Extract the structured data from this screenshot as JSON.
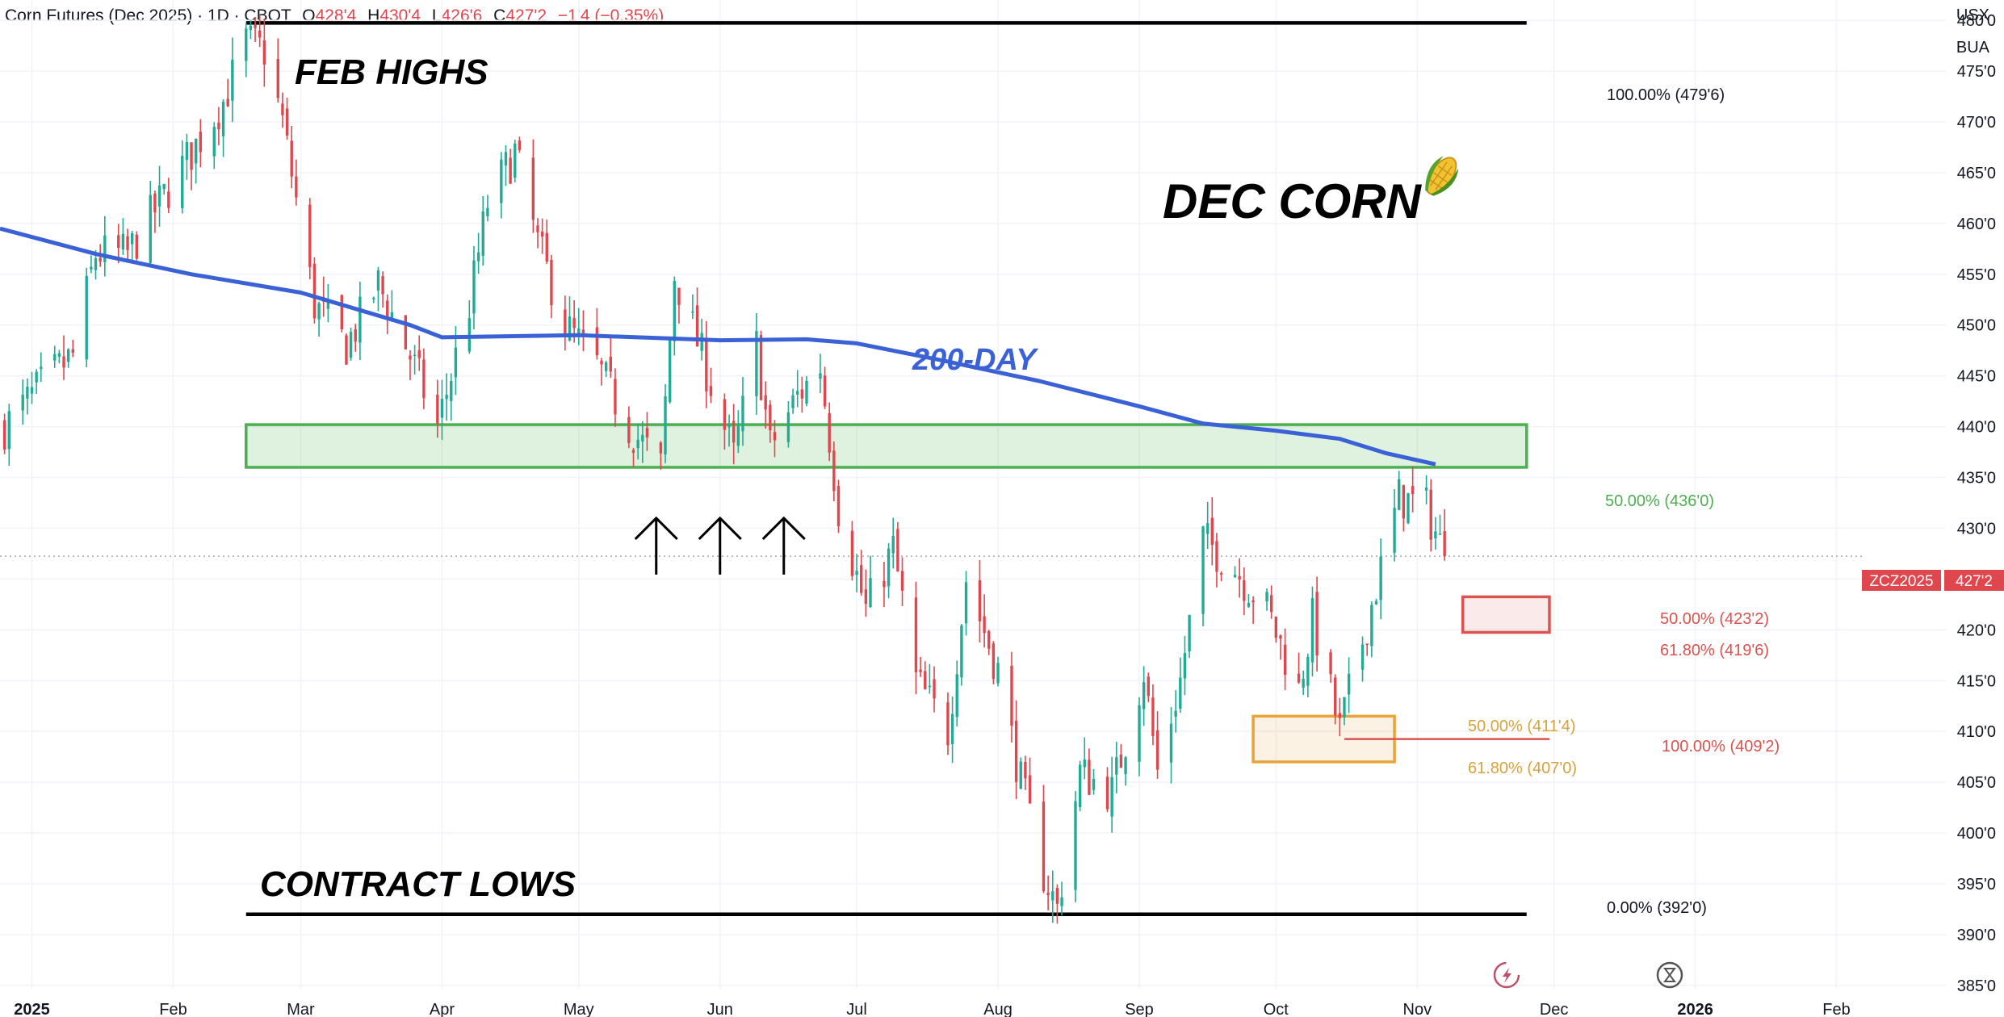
{
  "header": {
    "symbol": "Corn Futures (Dec 2025) · 1D · CBOT",
    "open_label": "O",
    "open": "428'4",
    "high_label": "H",
    "high": "430'4",
    "low_label": "L",
    "low": "426'6",
    "close_label": "C",
    "close": "427'2",
    "change": "−1'4 (−0.35%)"
  },
  "units": {
    "currency": "USX",
    "unit": "BUA"
  },
  "ticker_badge": {
    "symbol": "ZCZ2025",
    "price": "427'2"
  },
  "colors": {
    "up": "#22ab94",
    "down": "#e0464d",
    "ma": "#3a62d6",
    "zone_green": "#4caf50",
    "zone_red": "#d9534f",
    "zone_orange": "#e8a33a"
  },
  "icons": [
    "lightning-icon",
    "hourglass-icon"
  ],
  "chart_data": {
    "type": "candlestick",
    "x_axis": {
      "tick_labels": [
        "2025",
        "Feb",
        "Mar",
        "Apr",
        "May",
        "Jun",
        "Jul",
        "Aug",
        "Sep",
        "Oct",
        "Nov",
        "Dec",
        "2026",
        "Feb"
      ],
      "tick_dates": [
        "2025-01-01",
        "2025-02-01",
        "2025-03-01",
        "2025-04-01",
        "2025-05-01",
        "2025-06-01",
        "2025-07-01",
        "2025-08-01",
        "2025-09-01",
        "2025-10-01",
        "2025-11-01",
        "2025-12-01",
        "2026-01-01",
        "2026-02-01"
      ],
      "range": [
        "2024-12-25",
        "2026-02-25"
      ]
    },
    "y_axis": {
      "range": [
        383,
        482
      ],
      "tick_values": [
        385,
        390,
        395,
        400,
        405,
        410,
        415,
        420,
        425,
        430,
        435,
        440,
        445,
        450,
        455,
        460,
        465,
        470,
        475,
        480
      ],
      "tick_labels": [
        "385'0",
        "390'0",
        "395'0",
        "400'0",
        "405'0",
        "410'0",
        "415'0",
        "420'0",
        "425'0",
        "430'0",
        "435'0",
        "440'0",
        "445'0",
        "450'0",
        "455'0",
        "460'0",
        "465'0",
        "470'0",
        "475'0",
        "480'0"
      ]
    },
    "last_price": 427.25,
    "close_path": [
      [
        "2024-12-26",
        440
      ],
      [
        "2025-01-03",
        444
      ],
      [
        "2025-01-10",
        447
      ],
      [
        "2025-01-15",
        457
      ],
      [
        "2025-01-22",
        457
      ],
      [
        "2025-01-29",
        462
      ],
      [
        "2025-02-05",
        467
      ],
      [
        "2025-02-12",
        472
      ],
      [
        "2025-02-17",
        478
      ],
      [
        "2025-02-21",
        477
      ],
      [
        "2025-02-25",
        470
      ],
      [
        "2025-03-04",
        452
      ],
      [
        "2025-03-11",
        448
      ],
      [
        "2025-03-18",
        454
      ],
      [
        "2025-03-25",
        447
      ],
      [
        "2025-03-31",
        440
      ],
      [
        "2025-04-07",
        452
      ],
      [
        "2025-04-11",
        462
      ],
      [
        "2025-04-17",
        467
      ],
      [
        "2025-04-22",
        458
      ],
      [
        "2025-04-28",
        450
      ],
      [
        "2025-05-05",
        446
      ],
      [
        "2025-05-12",
        440
      ],
      [
        "2025-05-19",
        436
      ],
      [
        "2025-05-22",
        455
      ],
      [
        "2025-05-28",
        447
      ],
      [
        "2025-06-04",
        437
      ],
      [
        "2025-06-09",
        448
      ],
      [
        "2025-06-12",
        438
      ],
      [
        "2025-06-18",
        443
      ],
      [
        "2025-06-23",
        446
      ],
      [
        "2025-06-27",
        432
      ],
      [
        "2025-07-03",
        422
      ],
      [
        "2025-07-09",
        428
      ],
      [
        "2025-07-14",
        415
      ],
      [
        "2025-07-21",
        410
      ],
      [
        "2025-07-25",
        425
      ],
      [
        "2025-08-01",
        416
      ],
      [
        "2025-08-06",
        405
      ],
      [
        "2025-08-11",
        396
      ],
      [
        "2025-08-14",
        392.5
      ],
      [
        "2025-08-19",
        406
      ],
      [
        "2025-08-26",
        404
      ],
      [
        "2025-09-02",
        416
      ],
      [
        "2025-09-05",
        406
      ],
      [
        "2025-09-10",
        415
      ],
      [
        "2025-09-15",
        429
      ],
      [
        "2025-09-22",
        426
      ],
      [
        "2025-09-29",
        422
      ],
      [
        "2025-10-06",
        414
      ],
      [
        "2025-10-09",
        421
      ],
      [
        "2025-10-15",
        410
      ],
      [
        "2025-10-20",
        419
      ],
      [
        "2025-10-24",
        426
      ],
      [
        "2025-10-28",
        433
      ],
      [
        "2025-11-03",
        432
      ],
      [
        "2025-11-07",
        427.25
      ]
    ],
    "ma_200": {
      "label": "200-DAY",
      "points": [
        [
          "2024-12-25",
          459.5
        ],
        [
          "2025-01-15",
          457
        ],
        [
          "2025-02-05",
          455
        ],
        [
          "2025-03-01",
          453.2
        ],
        [
          "2025-03-25",
          450
        ],
        [
          "2025-04-01",
          448.8
        ],
        [
          "2025-05-01",
          449
        ],
        [
          "2025-06-01",
          448.5
        ],
        [
          "2025-06-20",
          448.6
        ],
        [
          "2025-07-01",
          448.2
        ],
        [
          "2025-07-20",
          446.5
        ],
        [
          "2025-08-10",
          444.5
        ],
        [
          "2025-09-01",
          442
        ],
        [
          "2025-09-15",
          440.3
        ],
        [
          "2025-10-01",
          439.6
        ],
        [
          "2025-10-15",
          438.8
        ],
        [
          "2025-10-25",
          437.4
        ],
        [
          "2025-11-05",
          436.3
        ]
      ]
    },
    "levels": [
      {
        "name": "feb-highs-line",
        "value": 479.75,
        "from": "2025-02-17",
        "to": "2025-11-25",
        "label": "100.00% (479'6)"
      },
      {
        "name": "contract-lows-line",
        "value": 392,
        "from": "2025-02-17",
        "to": "2025-11-25",
        "label": "0.00% (392'0)"
      },
      {
        "name": "red-100-line",
        "value": 409.25,
        "from": "2025-10-16",
        "to": "2025-11-30",
        "label": "100.00% (409'2)"
      }
    ],
    "zones": [
      {
        "name": "green-resistance-zone",
        "from": "2025-02-17",
        "to": "2025-11-25",
        "low": 436,
        "high": 440.2,
        "label": "50.00% (436'0)"
      },
      {
        "name": "red-fib-zone",
        "from": "2025-11-11",
        "to": "2025-11-30",
        "low": 419.75,
        "high": 423.25,
        "labels": [
          "50.00% (423'2)",
          "61.80% (419'6)"
        ]
      },
      {
        "name": "orange-fib-zone",
        "from": "2025-09-26",
        "to": "2025-10-27",
        "low": 407,
        "high": 411.5,
        "labels": [
          "50.00% (411'4)",
          "61.80% (407'0)"
        ]
      }
    ],
    "arrows": [
      {
        "date": "2025-05-18",
        "value": 431
      },
      {
        "date": "2025-06-01",
        "value": 431
      },
      {
        "date": "2025-06-15",
        "value": 431
      }
    ],
    "annotations": {
      "feb_highs": "FEB HIGHS",
      "contract_lows": "CONTRACT LOWS",
      "title": "DEC CORN",
      "title_icon": "corn-icon",
      "ma_label": "200-DAY"
    }
  }
}
